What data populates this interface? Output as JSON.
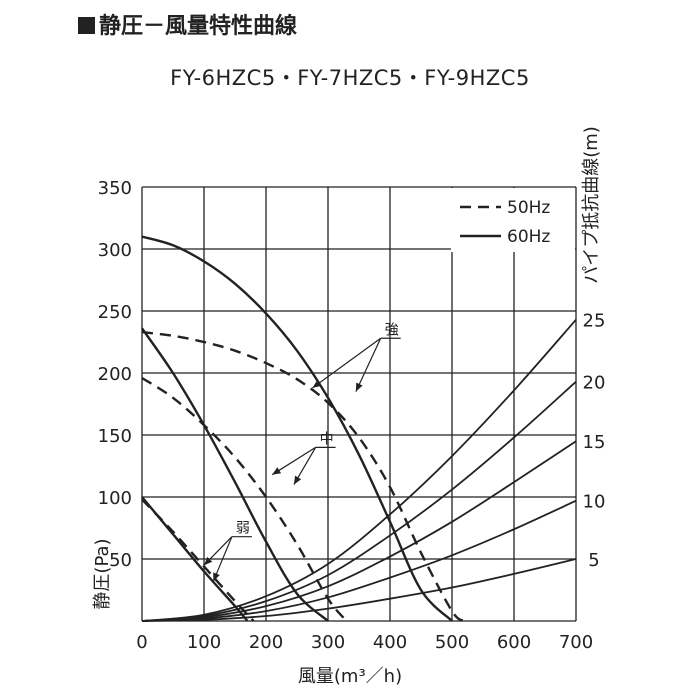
{
  "page_title_prefix": "■",
  "page_title": "静圧－風量特性曲線",
  "model_title": "FY-6HZC5・FY-7HZC5・FY-9HZC5",
  "chart_data": {
    "type": "line",
    "xlabel": "風量(m³／h)",
    "ylabel_left": "静圧(Pa)",
    "ylabel_right": "パイプ抵抗曲線(m)",
    "xlim": [
      0,
      700
    ],
    "ylim": [
      0,
      350
    ],
    "x_ticks": [
      0,
      100,
      200,
      300,
      400,
      500,
      600,
      700
    ],
    "y_ticks": [
      50,
      100,
      150,
      200,
      250,
      300,
      350
    ],
    "right_ticks": [
      {
        "label": "5",
        "y": 50
      },
      {
        "label": "10",
        "y": 97
      },
      {
        "label": "15",
        "y": 145
      },
      {
        "label": "20",
        "y": 193
      },
      {
        "label": "25",
        "y": 243
      }
    ],
    "grid": true,
    "legend": {
      "position": "top-right",
      "entries": [
        {
          "label": "50Hz",
          "style": "dashed"
        },
        {
          "label": "60Hz",
          "style": "solid"
        }
      ]
    },
    "series": [
      {
        "label": "強",
        "freq": "60Hz",
        "x": [
          0,
          50,
          100,
          150,
          200,
          250,
          300,
          350,
          400,
          450,
          500
        ],
        "y": [
          310,
          303,
          290,
          272,
          248,
          218,
          180,
          134,
          80,
          25,
          0
        ]
      },
      {
        "label": "強",
        "freq": "50Hz",
        "x": [
          0,
          50,
          100,
          150,
          200,
          250,
          300,
          350,
          400,
          450,
          500,
          520
        ],
        "y": [
          233,
          230,
          225,
          218,
          208,
          195,
          176,
          148,
          108,
          55,
          8,
          0
        ]
      },
      {
        "label": "中",
        "freq": "60Hz",
        "x": [
          0,
          50,
          100,
          150,
          200,
          250,
          300
        ],
        "y": [
          236,
          200,
          158,
          112,
          64,
          22,
          0
        ]
      },
      {
        "label": "中",
        "freq": "50Hz",
        "x": [
          0,
          50,
          100,
          150,
          200,
          250,
          300,
          330
        ],
        "y": [
          196,
          180,
          158,
          132,
          100,
          62,
          18,
          0
        ]
      },
      {
        "label": "弱",
        "freq": "60Hz",
        "x": [
          0,
          50,
          100,
          150,
          170
        ],
        "y": [
          100,
          70,
          40,
          12,
          0
        ]
      },
      {
        "label": "弱",
        "freq": "50Hz",
        "x": [
          0,
          50,
          100,
          150,
          180
        ],
        "y": [
          98,
          72,
          44,
          16,
          0
        ]
      }
    ],
    "pipe_resistance": [
      {
        "label": "5",
        "x": [
          0,
          100,
          200,
          300,
          400,
          500,
          600,
          700
        ],
        "y": [
          0,
          1,
          4,
          10,
          18,
          27,
          38,
          50
        ]
      },
      {
        "label": "10",
        "x": [
          0,
          100,
          200,
          300,
          400,
          500,
          600,
          700
        ],
        "y": [
          0,
          2,
          8,
          19,
          35,
          53,
          74,
          97
        ]
      },
      {
        "label": "15",
        "x": [
          0,
          100,
          200,
          300,
          400,
          500,
          600,
          700
        ],
        "y": [
          0,
          3,
          12,
          28,
          52,
          80,
          112,
          145
        ]
      },
      {
        "label": "20",
        "x": [
          0,
          100,
          200,
          300,
          400,
          500,
          600,
          700
        ],
        "y": [
          0,
          4,
          16,
          37,
          69,
          106,
          148,
          193
        ]
      },
      {
        "label": "25",
        "x": [
          0,
          100,
          200,
          300,
          400,
          500,
          600,
          700
        ],
        "y": [
          0,
          5,
          20,
          46,
          86,
          133,
          186,
          243
        ]
      }
    ],
    "annotations": [
      {
        "text": "強",
        "at_x": 385,
        "at_y": 228,
        "targets": [
          [
            275,
            188
          ],
          [
            345,
            185
          ]
        ]
      },
      {
        "text": "中",
        "at_x": 280,
        "at_y": 140,
        "targets": [
          [
            210,
            118
          ],
          [
            245,
            110
          ]
        ]
      },
      {
        "text": "弱",
        "at_x": 145,
        "at_y": 68,
        "targets": [
          [
            100,
            45
          ],
          [
            115,
            32
          ]
        ]
      }
    ]
  }
}
